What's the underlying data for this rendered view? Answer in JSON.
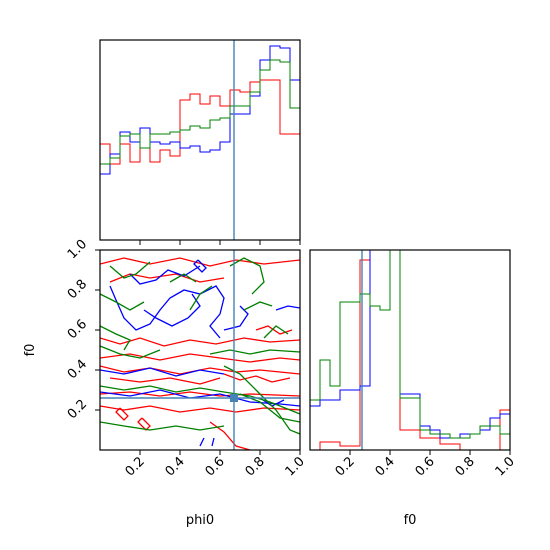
{
  "chart_data": {
    "type": "corner",
    "truth": {
      "phi0": 0.67,
      "f0": 0.26
    },
    "colors": {
      "series1": "#ff0000",
      "series2": "#0000ff",
      "series3": "#008000",
      "truth": "#4682b4"
    },
    "parameters": [
      {
        "name": "phi0",
        "label": "phi0",
        "range": [
          0,
          1
        ],
        "ticks": [
          0.2,
          0.4,
          0.6,
          0.8,
          1.0
        ],
        "tick_labels": [
          "0.2",
          "0.4",
          "0.6",
          "0.8",
          "1.0"
        ]
      },
      {
        "name": "f0",
        "label": "f0",
        "range": [
          0,
          1
        ],
        "ticks": [
          0.2,
          0.4,
          0.6,
          0.8,
          1.0
        ],
        "tick_labels": [
          "0.2",
          "0.4",
          "0.6",
          "0.8",
          "1.0"
        ]
      }
    ],
    "hist_phi0": {
      "bin_edges": [
        0.0,
        0.05,
        0.1,
        0.15,
        0.2,
        0.25,
        0.3,
        0.35,
        0.4,
        0.45,
        0.5,
        0.55,
        0.6,
        0.65,
        0.7,
        0.75,
        0.8,
        0.85,
        0.9,
        0.95,
        1.0
      ],
      "ylim": [
        0,
        1.0
      ],
      "series": [
        {
          "color": "red",
          "values": [
            0.48,
            0.38,
            0.48,
            0.39,
            0.46,
            0.39,
            0.45,
            0.42,
            0.7,
            0.73,
            0.68,
            0.72,
            0.67,
            0.75,
            0.74,
            0.79,
            0.8,
            0.8,
            0.53,
            0.53
          ]
        },
        {
          "color": "blue",
          "values": [
            0.33,
            0.43,
            0.54,
            0.49,
            0.56,
            0.49,
            0.48,
            0.49,
            0.46,
            0.47,
            0.44,
            0.45,
            0.49,
            0.63,
            0.63,
            0.72,
            0.9,
            0.97,
            0.96,
            0.8
          ]
        },
        {
          "color": "green",
          "values": [
            0.38,
            0.41,
            0.52,
            0.53,
            0.46,
            0.53,
            0.53,
            0.54,
            0.55,
            0.57,
            0.56,
            0.6,
            0.61,
            0.67,
            0.67,
            0.74,
            0.85,
            0.9,
            0.89,
            0.66
          ]
        }
      ]
    },
    "hist_f0": {
      "bin_edges": [
        0.0,
        0.05,
        0.1,
        0.15,
        0.2,
        0.25,
        0.3,
        0.35,
        0.4,
        0.45,
        0.5,
        0.55,
        0.6,
        0.65,
        0.7,
        0.75,
        0.8,
        0.85,
        0.9,
        0.95,
        1.0
      ],
      "ylim": [
        0,
        1.0
      ],
      "series": [
        {
          "color": "red",
          "values": [
            0.0,
            0.04,
            0.04,
            0.02,
            0.02,
            0.95,
            1.0,
            1.0,
            1.0,
            0.1,
            0.1,
            0.06,
            0.06,
            0.03,
            0.03,
            0.0,
            0.0,
            0.0,
            0.0,
            0.2
          ]
        },
        {
          "color": "blue",
          "values": [
            0.22,
            0.25,
            0.25,
            0.3,
            0.3,
            0.32,
            1.0,
            1.0,
            1.0,
            0.28,
            0.28,
            0.12,
            0.1,
            0.06,
            0.06,
            0.08,
            0.08,
            0.1,
            0.16,
            0.18
          ]
        },
        {
          "color": "green",
          "values": [
            0.25,
            0.45,
            0.32,
            0.74,
            0.74,
            0.78,
            0.72,
            0.7,
            1.0,
            0.26,
            0.26,
            0.1,
            0.08,
            0.08,
            0.06,
            0.06,
            0.08,
            0.12,
            0.12,
            0.08
          ]
        }
      ]
    },
    "contours_2d": [
      {
        "color": "red",
        "lines": [
          [
            [
              0.0,
              0.93
            ],
            [
              0.12,
              0.96
            ],
            [
              0.25,
              0.93
            ],
            [
              0.4,
              0.96
            ],
            [
              0.55,
              0.92
            ],
            [
              0.68,
              0.95
            ],
            [
              0.82,
              0.93
            ],
            [
              1.0,
              0.95
            ]
          ],
          [
            [
              0.05,
              0.84
            ],
            [
              0.15,
              0.88
            ],
            [
              0.25,
              0.86
            ],
            [
              0.38,
              0.88
            ],
            [
              0.5,
              0.84
            ],
            [
              0.62,
              0.86
            ]
          ],
          [
            [
              0.0,
              0.56
            ],
            [
              0.1,
              0.53
            ],
            [
              0.2,
              0.56
            ],
            [
              0.32,
              0.52
            ],
            [
              0.45,
              0.55
            ],
            [
              0.58,
              0.53
            ],
            [
              0.72,
              0.56
            ],
            [
              0.85,
              0.54
            ],
            [
              1.0,
              0.55
            ]
          ],
          [
            [
              0.0,
              0.46
            ],
            [
              0.15,
              0.48
            ],
            [
              0.3,
              0.45
            ],
            [
              0.45,
              0.48
            ],
            [
              0.6,
              0.46
            ],
            [
              0.75,
              0.44
            ],
            [
              0.9,
              0.46
            ],
            [
              1.0,
              0.45
            ]
          ],
          [
            [
              0.0,
              0.42
            ],
            [
              0.12,
              0.39
            ],
            [
              0.25,
              0.41
            ],
            [
              0.4,
              0.38
            ],
            [
              0.55,
              0.41
            ],
            [
              0.68,
              0.39
            ],
            [
              0.8,
              0.4
            ],
            [
              1.0,
              0.38
            ]
          ],
          [
            [
              0.05,
              0.36
            ],
            [
              0.2,
              0.34
            ],
            [
              0.35,
              0.36
            ],
            [
              0.5,
              0.33
            ],
            [
              0.6,
              0.36
            ]
          ],
          [
            [
              0.62,
              0.38
            ],
            [
              0.7,
              0.35
            ],
            [
              0.78,
              0.37
            ],
            [
              0.86,
              0.34
            ],
            [
              0.95,
              0.36
            ]
          ],
          [
            [
              0.0,
              0.28
            ],
            [
              0.15,
              0.29
            ],
            [
              0.3,
              0.27
            ],
            [
              0.45,
              0.29
            ],
            [
              0.6,
              0.27
            ],
            [
              0.75,
              0.28
            ],
            [
              1.0,
              0.27
            ]
          ],
          [
            [
              0.0,
              0.22
            ],
            [
              0.12,
              0.2
            ],
            [
              0.25,
              0.22
            ],
            [
              0.4,
              0.19
            ],
            [
              0.55,
              0.21
            ],
            [
              0.68,
              0.19
            ],
            [
              0.82,
              0.21
            ],
            [
              1.0,
              0.2
            ]
          ],
          [
            [
              0.55,
              0.14
            ],
            [
              0.62,
              0.09
            ],
            [
              0.68,
              0.02
            ],
            [
              0.75,
              0.0
            ]
          ],
          [
            [
              0.78,
              0.6
            ],
            [
              0.84,
              0.62
            ],
            [
              0.9,
              0.58
            ],
            [
              0.96,
              0.6
            ]
          ],
          [
            [
              0.21,
              0.16
            ],
            [
              0.23,
              0.14
            ],
            [
              0.25,
              0.12
            ],
            [
              0.23,
              0.1
            ],
            [
              0.21,
              0.12
            ],
            [
              0.19,
              0.14
            ],
            [
              0.21,
              0.16
            ]
          ],
          [
            [
              0.1,
              0.21
            ],
            [
              0.12,
              0.19
            ],
            [
              0.14,
              0.17
            ],
            [
              0.12,
              0.15
            ],
            [
              0.1,
              0.17
            ],
            [
              0.08,
              0.19
            ],
            [
              0.1,
              0.21
            ]
          ]
        ]
      },
      {
        "color": "blue",
        "lines": [
          [
            [
              0.05,
              0.82
            ],
            [
              0.08,
              0.75
            ],
            [
              0.12,
              0.66
            ],
            [
              0.18,
              0.6
            ],
            [
              0.25,
              0.63
            ],
            [
              0.3,
              0.7
            ],
            [
              0.35,
              0.76
            ],
            [
              0.42,
              0.8
            ],
            [
              0.5,
              0.78
            ],
            [
              0.58,
              0.82
            ],
            [
              0.62,
              0.76
            ],
            [
              0.6,
              0.68
            ],
            [
              0.55,
              0.62
            ],
            [
              0.6,
              0.56
            ]
          ],
          [
            [
              0.15,
              0.88
            ],
            [
              0.2,
              0.83
            ],
            [
              0.28,
              0.85
            ],
            [
              0.34,
              0.9
            ],
            [
              0.42,
              0.87
            ],
            [
              0.5,
              0.92
            ]
          ],
          [
            [
              0.22,
              0.7
            ],
            [
              0.28,
              0.66
            ],
            [
              0.36,
              0.62
            ],
            [
              0.44,
              0.66
            ],
            [
              0.5,
              0.72
            ],
            [
              0.46,
              0.78
            ]
          ],
          [
            [
              0.62,
              0.6
            ],
            [
              0.7,
              0.62
            ],
            [
              0.74,
              0.68
            ],
            [
              0.7,
              0.72
            ]
          ],
          [
            [
              0.0,
              0.4
            ],
            [
              0.12,
              0.38
            ],
            [
              0.25,
              0.41
            ],
            [
              0.38,
              0.37
            ],
            [
              0.5,
              0.4
            ],
            [
              0.62,
              0.38
            ]
          ],
          [
            [
              0.0,
              0.29
            ],
            [
              0.15,
              0.27
            ],
            [
              0.3,
              0.3
            ],
            [
              0.45,
              0.26
            ],
            [
              0.6,
              0.28
            ],
            [
              0.75,
              0.24
            ],
            [
              0.9,
              0.23
            ],
            [
              1.0,
              0.22
            ]
          ],
          [
            [
              0.5,
              0.02
            ],
            [
              0.52,
              0.06
            ]
          ],
          [
            [
              0.56,
              0.02
            ],
            [
              0.57,
              0.06
            ]
          ],
          [
            [
              0.8,
              0.26
            ],
            [
              0.86,
              0.22
            ],
            [
              0.92,
              0.25
            ]
          ],
          [
            [
              0.88,
              0.7
            ],
            [
              0.94,
              0.72
            ],
            [
              1.0,
              0.71
            ]
          ],
          [
            [
              0.49,
              0.95
            ],
            [
              0.51,
              0.93
            ],
            [
              0.53,
              0.91
            ],
            [
              0.51,
              0.89
            ],
            [
              0.49,
              0.91
            ],
            [
              0.47,
              0.93
            ],
            [
              0.49,
              0.95
            ]
          ]
        ]
      },
      {
        "color": "green",
        "lines": [
          [
            [
              0.05,
              0.92
            ],
            [
              0.12,
              0.86
            ],
            [
              0.18,
              0.88
            ],
            [
              0.25,
              0.94
            ]
          ],
          [
            [
              0.0,
              0.78
            ],
            [
              0.08,
              0.74
            ],
            [
              0.15,
              0.7
            ],
            [
              0.22,
              0.74
            ]
          ],
          [
            [
              0.0,
              0.62
            ],
            [
              0.08,
              0.58
            ],
            [
              0.15,
              0.55
            ],
            [
              0.12,
              0.5
            ]
          ],
          [
            [
              0.0,
              0.52
            ],
            [
              0.1,
              0.48
            ],
            [
              0.2,
              0.46
            ],
            [
              0.3,
              0.5
            ]
          ],
          [
            [
              0.35,
              0.84
            ],
            [
              0.42,
              0.88
            ],
            [
              0.48,
              0.84
            ]
          ],
          [
            [
              0.45,
              0.7
            ],
            [
              0.5,
              0.78
            ],
            [
              0.56,
              0.82
            ]
          ],
          [
            [
              0.65,
              0.92
            ],
            [
              0.72,
              0.96
            ],
            [
              0.8,
              0.92
            ],
            [
              0.82,
              0.84
            ],
            [
              0.76,
              0.78
            ]
          ],
          [
            [
              0.55,
              0.48
            ],
            [
              0.65,
              0.5
            ],
            [
              0.75,
              0.48
            ],
            [
              0.85,
              0.5
            ],
            [
              1.0,
              0.49
            ]
          ],
          [
            [
              0.0,
              0.32
            ],
            [
              0.12,
              0.3
            ],
            [
              0.25,
              0.32
            ],
            [
              0.38,
              0.29
            ],
            [
              0.5,
              0.31
            ],
            [
              0.62,
              0.29
            ],
            [
              0.75,
              0.27
            ],
            [
              0.85,
              0.24
            ],
            [
              0.95,
              0.2
            ],
            [
              1.0,
              0.18
            ]
          ],
          [
            [
              0.0,
              0.14
            ],
            [
              0.12,
              0.12
            ],
            [
              0.25,
              0.1
            ],
            [
              0.38,
              0.12
            ],
            [
              0.5,
              0.1
            ],
            [
              0.62,
              0.12
            ]
          ],
          [
            [
              0.62,
              0.42
            ],
            [
              0.7,
              0.38
            ],
            [
              0.78,
              0.3
            ],
            [
              0.88,
              0.2
            ],
            [
              0.95,
              0.1
            ],
            [
              1.0,
              0.08
            ]
          ],
          [
            [
              0.7,
              0.28
            ],
            [
              0.8,
              0.24
            ],
            [
              0.9,
              0.16
            ],
            [
              1.0,
              0.14
            ]
          ],
          [
            [
              0.82,
              0.56
            ],
            [
              0.88,
              0.62
            ],
            [
              0.94,
              0.58
            ]
          ],
          [
            [
              0.72,
              0.7
            ],
            [
              0.8,
              0.74
            ],
            [
              0.86,
              0.72
            ]
          ]
        ]
      }
    ]
  }
}
